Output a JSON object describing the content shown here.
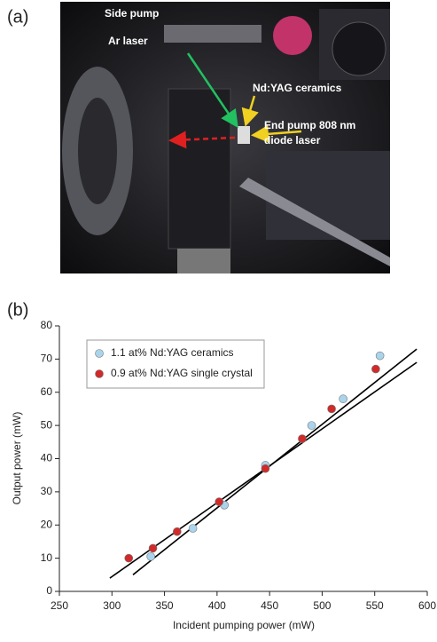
{
  "photo": {
    "panel_label": "(a)",
    "labels": [
      "Side pump",
      "Ar laser",
      "Nd:YAG ceramics"
    ],
    "end_pump_label": [
      "End pump 808 nm",
      "diode laser"
    ]
  },
  "chart_data": {
    "type": "scatter",
    "panel_label": "(b)",
    "x_label": "Incident pumping power (mW)",
    "y_label": "Output power (mW)",
    "xlim": [
      250,
      600
    ],
    "xticks": [
      250,
      300,
      350,
      400,
      450,
      500,
      550,
      600
    ],
    "ylim": [
      0,
      80
    ],
    "yticks": [
      0,
      10,
      20,
      30,
      40,
      50,
      60,
      70,
      80
    ],
    "legend": "upper left",
    "series": [
      {
        "name": "1.1 at% Nd:YAG ceramics",
        "color": "#a9d4ec",
        "x": [
          337,
          377,
          407,
          446,
          490,
          520,
          555
        ],
        "values": [
          10.5,
          19,
          26,
          38,
          50,
          58,
          71
        ]
      },
      {
        "name": "0.9 at% Nd:YAG single crystal",
        "color": "#d02a2a",
        "x": [
          316,
          339,
          362,
          402,
          446,
          481,
          509,
          551
        ],
        "values": [
          10,
          13,
          18,
          27,
          37,
          46,
          55,
          67
        ]
      }
    ],
    "fit_lines": [
      {
        "color": "#000000",
        "x": [
          320,
          590
        ],
        "values": [
          5,
          73
        ]
      },
      {
        "color": "#000000",
        "x": [
          298,
          590
        ],
        "values": [
          4,
          69
        ]
      }
    ]
  }
}
